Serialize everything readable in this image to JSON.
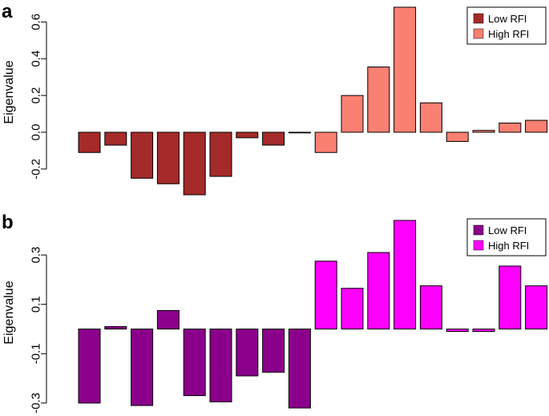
{
  "chart_data": [
    {
      "type": "bar",
      "panel_label": "a",
      "title": "",
      "xlabel": "",
      "ylabel": "Eigenvalue",
      "ylim": [
        -0.34,
        0.68
      ],
      "yticks": [
        -0.2,
        0.0,
        0.2,
        0.4,
        0.6
      ],
      "ytick_labels": [
        "-0.2",
        "0.0",
        "0.2",
        "0.4",
        "0.6"
      ],
      "grid": false,
      "legend_position": "top-right",
      "series": [
        {
          "name": "Low RFI",
          "color": "#A52A2A",
          "values": [
            -0.11,
            -0.07,
            -0.25,
            -0.28,
            -0.34,
            -0.24,
            -0.03,
            -0.07,
            -0.003
          ]
        },
        {
          "name": "High RFI",
          "color": "#FA8072",
          "values": [
            -0.11,
            0.2,
            0.355,
            0.68,
            0.16,
            -0.05,
            0.01,
            0.05,
            0.065
          ]
        }
      ]
    },
    {
      "type": "bar",
      "panel_label": "b",
      "title": "",
      "xlabel": "",
      "ylabel": "Eigenvalue",
      "ylim": [
        -0.32,
        0.44
      ],
      "yticks": [
        -0.3,
        -0.1,
        0.1,
        0.3
      ],
      "ytick_labels": [
        "-0.3",
        "-0.1",
        "0.1",
        "0.3"
      ],
      "grid": false,
      "legend_position": "top-right",
      "series": [
        {
          "name": "Low RFI",
          "color": "#8B008B",
          "values": [
            -0.3,
            0.01,
            -0.31,
            0.075,
            -0.27,
            -0.295,
            -0.19,
            -0.175,
            -0.32
          ]
        },
        {
          "name": "High RFI",
          "color": "#FF00FF",
          "values": [
            0.275,
            0.165,
            0.31,
            0.44,
            0.175,
            -0.01,
            -0.01,
            0.255,
            0.175
          ]
        }
      ]
    }
  ]
}
